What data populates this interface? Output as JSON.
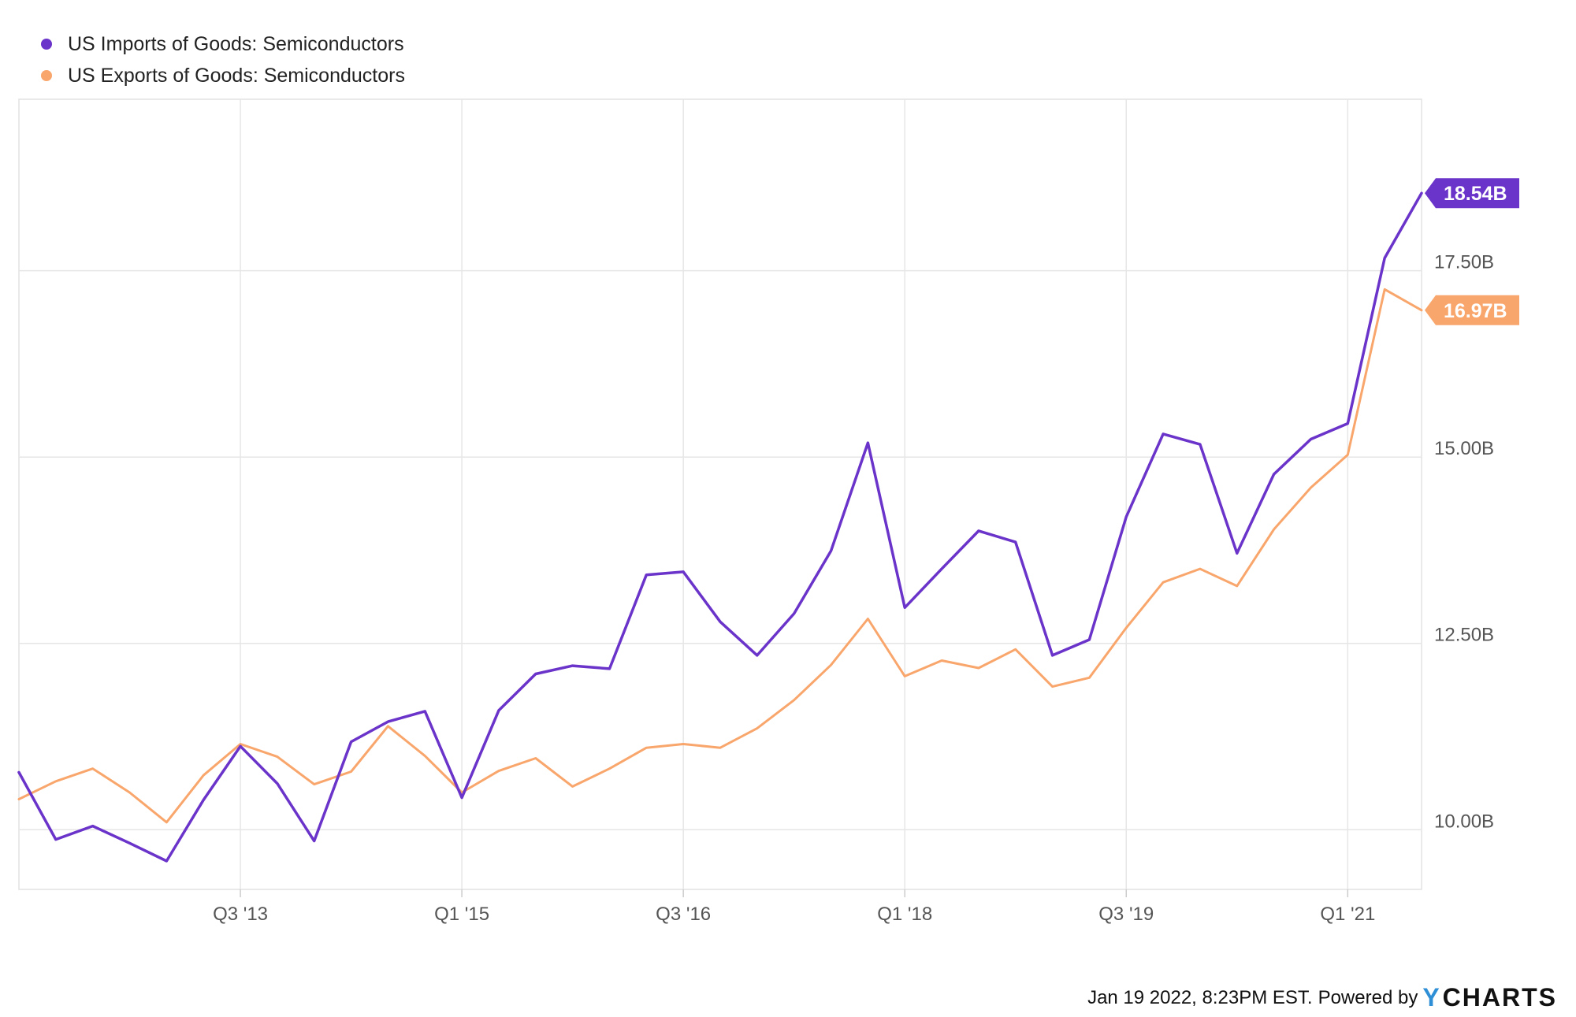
{
  "chart_data": {
    "type": "line",
    "x_ticks": [
      "Q3 '13",
      "Q1 '15",
      "Q3 '16",
      "Q1 '18",
      "Q3 '19",
      "Q1 '21"
    ],
    "y_ticks": [
      "10.00B",
      "12.50B",
      "15.00B",
      "17.50B"
    ],
    "ylim": [
      9.2,
      19.8
    ],
    "grid": true,
    "legend_position": "top-left",
    "series": [
      {
        "name": "US Imports of Goods: Semiconductors",
        "color": "#6a33c9",
        "end_label": "18.54B",
        "values": [
          10.77,
          9.87,
          10.05,
          9.82,
          9.58,
          10.4,
          11.12,
          10.62,
          9.85,
          11.18,
          11.45,
          11.59,
          10.43,
          11.6,
          12.09,
          12.2,
          12.16,
          13.42,
          13.46,
          12.79,
          12.34,
          12.9,
          13.74,
          15.19,
          12.98,
          13.5,
          14.01,
          13.86,
          12.34,
          12.55,
          14.2,
          15.31,
          15.17,
          13.71,
          14.77,
          15.24,
          15.45,
          17.67,
          18.54
        ]
      },
      {
        "name": "US Exports of Goods: Semiconductors",
        "color": "#f9a66c",
        "end_label": "16.97B",
        "values": [
          10.41,
          10.65,
          10.82,
          10.5,
          10.1,
          10.73,
          11.15,
          10.98,
          10.61,
          10.78,
          11.39,
          10.99,
          10.5,
          10.79,
          10.96,
          10.58,
          10.82,
          11.1,
          11.15,
          11.1,
          11.36,
          11.74,
          12.21,
          12.83,
          12.06,
          12.27,
          12.17,
          12.42,
          11.92,
          12.04,
          12.71,
          13.32,
          13.5,
          13.27,
          14.03,
          14.59,
          15.03,
          17.25,
          16.97
        ]
      }
    ]
  },
  "footer": {
    "timestamp": "Jan 19 2022, 8:23PM EST.",
    "powered_by": "Powered by",
    "brand_y": "Y",
    "brand_rest": "CHARTS"
  }
}
